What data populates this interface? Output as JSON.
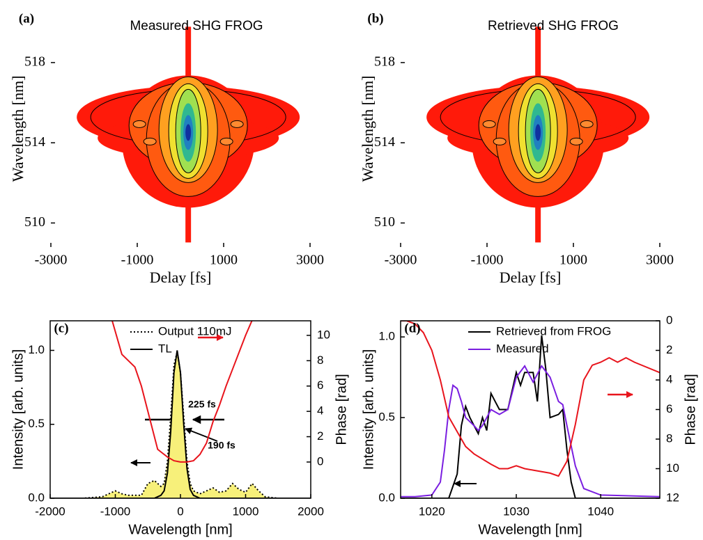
{
  "chart_data": [
    {
      "type": "heatmap",
      "panel": "(a)",
      "title": "Measured SHG FROG",
      "xlabel": "Delay [fs]",
      "ylabel": "Wavelength [nm]",
      "xlim": [
        -3000,
        3000
      ],
      "xticks": [
        -3000,
        -1000,
        1000,
        3000
      ],
      "ylim": [
        508.8,
        520.6
      ],
      "yticks": [
        510,
        514,
        518
      ]
    },
    {
      "type": "heatmap",
      "panel": "(b)",
      "title": "Retrieved SHG FROG",
      "xlabel": "Delay [fs]",
      "ylabel": "Wavelength [nm]",
      "xlim": [
        -3000,
        3000
      ],
      "xticks": [
        -3000,
        -1000,
        1000,
        3000
      ],
      "ylim": [
        508.8,
        520.6
      ],
      "yticks": [
        510,
        514,
        518
      ]
    },
    {
      "type": "line",
      "panel": "(c)",
      "xlabel": "Wavelength [nm]",
      "ylabel": "Intensity [arb. units]",
      "y2label": "Phase [rad]",
      "xlim": [
        -2000,
        2000
      ],
      "xticks": [
        -2000,
        -1000,
        0,
        1000,
        2000
      ],
      "ylim": [
        0,
        1.2
      ],
      "yticks": [
        {
          "value": 0,
          "label": "0.0"
        },
        {
          "value": 0.5,
          "label": "0.5"
        },
        {
          "value": 1,
          "label": "1.0"
        }
      ],
      "y2lim": [
        -2.86,
        11.15
      ],
      "y2ticks": [
        0,
        2,
        4,
        6,
        8,
        10
      ],
      "legend_loc": "upper center",
      "annotations": [
        "225 fs",
        "190 fs"
      ],
      "series": [
        {
          "name": "Output 110mJ",
          "color": "#000000",
          "dash": "dotted",
          "fill": "#f7f07a",
          "x": [
            -2000,
            -1500,
            -1200,
            -1000,
            -900,
            -800,
            -600,
            -500,
            -400,
            -300,
            -250,
            -200,
            -150,
            -100,
            -50,
            0,
            50,
            100,
            150,
            200,
            300,
            400,
            500,
            600,
            700,
            800,
            900,
            1000,
            1100,
            1200,
            1300,
            1500,
            2000
          ],
          "values": [
            0,
            0,
            0.01,
            0.05,
            0.03,
            0.02,
            0.02,
            0.1,
            0.12,
            0.08,
            0.1,
            0.25,
            0.55,
            0.9,
            0.99,
            0.85,
            0.55,
            0.25,
            0.1,
            0.05,
            0.03,
            0.05,
            0.07,
            0.04,
            0.05,
            0.1,
            0.06,
            0.04,
            0.1,
            0.05,
            0.01,
            0,
            0
          ]
        },
        {
          "name": "TL",
          "color": "#000000",
          "x": [
            -2000,
            -1000,
            -400,
            -300,
            -250,
            -200,
            -150,
            -100,
            -50,
            0,
            50,
            100,
            150,
            200,
            300,
            1000,
            2000
          ],
          "values": [
            0,
            0,
            0,
            0.02,
            0.05,
            0.17,
            0.45,
            0.85,
            1,
            0.85,
            0.5,
            0.2,
            0.06,
            0.02,
            0,
            0,
            0
          ]
        },
        {
          "color": "#e8141c",
          "axis": "y2",
          "x": [
            -1050,
            -900,
            -700,
            -600,
            -450,
            -350,
            -300,
            -200,
            -100,
            0,
            100,
            200,
            300,
            400,
            500,
            600,
            700,
            850,
            1000,
            1100
          ],
          "values": [
            11.2,
            8.5,
            7.5,
            6,
            3,
            1,
            0.8,
            0.4,
            0.1,
            0,
            0,
            0.1,
            0.6,
            1.5,
            3.2,
            4.5,
            6,
            8,
            10,
            11.2
          ]
        }
      ]
    },
    {
      "type": "line",
      "panel": "(d)",
      "xlabel": "Wavelength [nm]",
      "ylabel": "Intensity [arb. units]",
      "y2label": "Phase [rad]",
      "xlim": [
        1016.3,
        1047
      ],
      "xticks": [
        1020,
        1030,
        1040
      ],
      "ylim": [
        0,
        1.1
      ],
      "yticks": [
        {
          "value": 0,
          "label": "0.0"
        },
        {
          "value": 0.5,
          "label": "0.5"
        },
        {
          "value": 1,
          "label": "1.0"
        }
      ],
      "y2lim": [
        12,
        0
      ],
      "y2ticks": [
        0,
        2,
        4,
        6,
        8,
        10,
        12
      ],
      "legend_loc": "upper left",
      "series": [
        {
          "name": "Retrieved from FROG",
          "color": "#000000",
          "x": [
            1016.3,
            1022,
            1023,
            1023.5,
            1024,
            1024.5,
            1025,
            1025.5,
            1026,
            1026.5,
            1027,
            1027.5,
            1028,
            1029,
            1030,
            1030.5,
            1031,
            1032,
            1032.5,
            1033,
            1033.5,
            1034,
            1035,
            1035.5,
            1036,
            1036.5,
            1037,
            1047
          ],
          "values": [
            0,
            0,
            0.15,
            0.45,
            0.57,
            0.5,
            0.45,
            0.4,
            0.5,
            0.42,
            0.65,
            0.6,
            0.55,
            0.55,
            0.78,
            0.7,
            0.78,
            0.78,
            0.6,
            1.01,
            0.8,
            0.5,
            0.52,
            0.55,
            0.3,
            0.1,
            0,
            0
          ]
        },
        {
          "name": "Measured",
          "color": "#7a1ee0",
          "x": [
            1016.3,
            1018,
            1020,
            1021,
            1021.5,
            1022,
            1022.5,
            1023,
            1023.5,
            1024,
            1025,
            1025.5,
            1026,
            1027,
            1028,
            1029,
            1030,
            1031,
            1032,
            1033,
            1034,
            1035,
            1035.5,
            1036,
            1037,
            1038,
            1040,
            1047
          ],
          "values": [
            0.01,
            0.01,
            0.02,
            0.1,
            0.3,
            0.55,
            0.7,
            0.68,
            0.6,
            0.5,
            0.45,
            0.42,
            0.45,
            0.55,
            0.52,
            0.55,
            0.75,
            0.82,
            0.72,
            0.82,
            0.75,
            0.6,
            0.58,
            0.45,
            0.2,
            0.06,
            0.02,
            0.01
          ]
        },
        {
          "color": "#e8141c",
          "axis": "y2",
          "x": [
            1016.3,
            1017,
            1018,
            1019,
            1020,
            1021,
            1022,
            1023,
            1024,
            1025,
            1027,
            1028,
            1029,
            1030,
            1031,
            1032,
            1034,
            1035,
            1036,
            1037,
            1038,
            1039,
            1040,
            1041,
            1042,
            1043,
            1044,
            1047
          ],
          "values": [
            0,
            0,
            0.2,
            0.8,
            2,
            4,
            6.5,
            7.5,
            8.5,
            9,
            9.7,
            10,
            10,
            9.8,
            10,
            10.1,
            10.3,
            10.5,
            9.5,
            7,
            4,
            3,
            2.8,
            2.5,
            2.8,
            2.5,
            2.8,
            3.5
          ]
        }
      ]
    }
  ]
}
